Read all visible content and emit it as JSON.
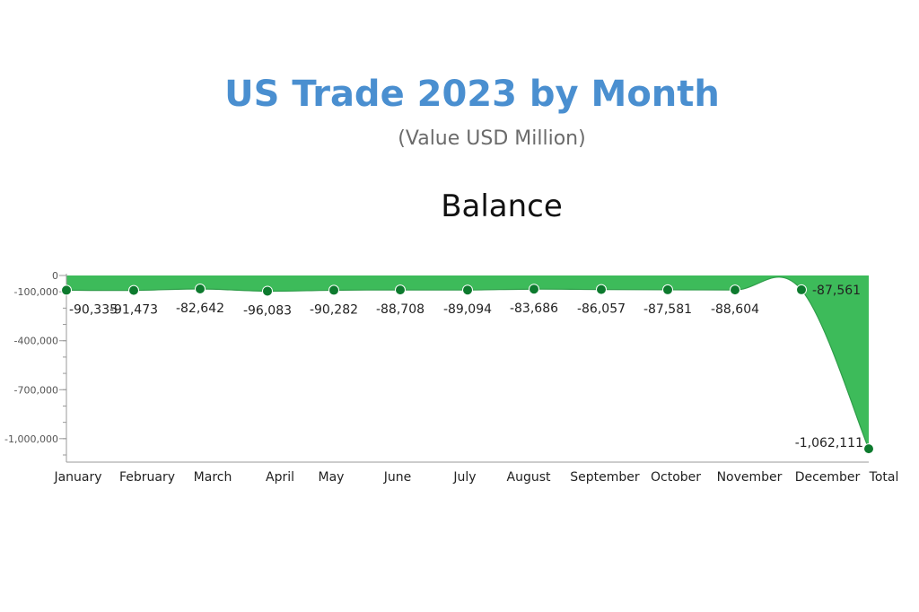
{
  "header": {
    "title": "US Trade 2023 by Month",
    "subtitle": "(Value USD Million)"
  },
  "colors": {
    "title": "#4a8fd0",
    "area_fill": "#3dbb5a",
    "point": "#0d7a2e",
    "axis": "#999999"
  },
  "chart_data": {
    "type": "area",
    "title": "Balance",
    "xlabel": "",
    "ylabel": "",
    "categories": [
      "January",
      "February",
      "March",
      "April",
      "May",
      "June",
      "July",
      "August",
      "September",
      "October",
      "November",
      "December",
      "Total"
    ],
    "series": [
      {
        "values": [
          -90335,
          -91473,
          -82642,
          -96083,
          -90282,
          -88708,
          -89094,
          -83686,
          -86057,
          -87581,
          -88604,
          -87561,
          -1062111
        ]
      }
    ],
    "data_labels": [
      "-90,335",
      "-91,473",
      "-82,642",
      "-96,083",
      "-90,282",
      "-88,708",
      "-89,094",
      "-83,686",
      "-86,057",
      "-87,581",
      "-88,604",
      "-87,561",
      "-1,062,111"
    ],
    "y_ticks": [
      0,
      -100000,
      -400000,
      -700000,
      -1000000
    ],
    "y_tick_labels": [
      "0",
      "-100,000",
      "-400,000",
      "-700,000",
      "-1,000,000"
    ],
    "ylim": [
      -1100000,
      0
    ],
    "grid": false,
    "legend": "none"
  }
}
